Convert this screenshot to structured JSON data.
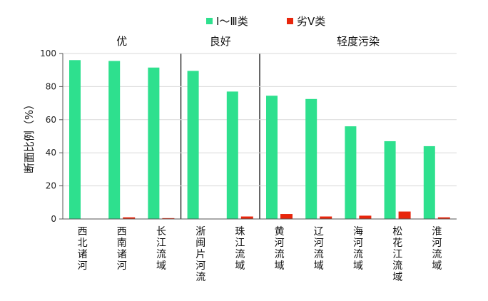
{
  "chart_data": {
    "type": "bar",
    "ylabel": "断面比例（%）",
    "ylim": [
      0,
      100
    ],
    "yticks": [
      "0",
      "20",
      "40",
      "60",
      "80",
      "100"
    ],
    "categories": [
      "西北诸河",
      "西南诸河",
      "长江流域",
      "浙闽片河流",
      "珠江流域",
      "黄河流域",
      "辽河流域",
      "海河流域",
      "松花江流域",
      "淮河流域"
    ],
    "series": [
      {
        "name": "Ⅰ～Ⅲ类",
        "color": "#2ee08e",
        "values": [
          96,
          95.5,
          91.5,
          89.5,
          77,
          74.5,
          72.5,
          56,
          47,
          44
        ]
      },
      {
        "name": "劣Ⅴ类",
        "color": "#e8260c",
        "values": [
          0,
          1,
          0.5,
          0,
          1.5,
          3,
          1.5,
          2,
          4.5,
          1
        ]
      }
    ],
    "groups": [
      {
        "label": "优",
        "start": 0,
        "end": 2
      },
      {
        "label": "良好",
        "start": 3,
        "end": 4
      },
      {
        "label": "轻度污染",
        "start": 5,
        "end": 9
      }
    ],
    "grid": true,
    "legend": "top"
  }
}
